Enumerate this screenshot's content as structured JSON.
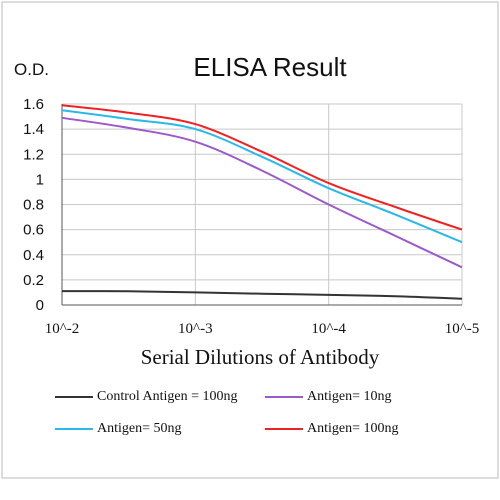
{
  "chart_data": {
    "type": "line",
    "title": "ELISA Result",
    "ylabel": "O.D.",
    "xlabel": "Serial Dilutions  of Antibody",
    "x_ticks": [
      "10^-2",
      "10^-3",
      "10^-4",
      "10^-5"
    ],
    "y_ticks": [
      "0",
      "0.2",
      "0.4",
      "0.6",
      "0.8",
      "1",
      "1.2",
      "1.4",
      "1.6"
    ],
    "ylim": [
      0,
      1.6
    ],
    "x_scale": "log",
    "x": [
      0.01,
      0.00316,
      0.001,
      0.000316,
      0.0001,
      3.16e-05,
      1e-05
    ],
    "grid": true,
    "legend_position": "bottom",
    "series": [
      {
        "name": "Control Antigen = 100ng",
        "color": "#333333",
        "values": [
          0.11,
          0.11,
          0.1,
          0.09,
          0.08,
          0.07,
          0.05
        ]
      },
      {
        "name": "Antigen= 10ng",
        "color": "#9b59c9",
        "values": [
          1.49,
          1.41,
          1.3,
          1.07,
          0.8,
          0.55,
          0.3
        ]
      },
      {
        "name": "Antigen= 50ng",
        "color": "#2ab8e8",
        "values": [
          1.55,
          1.48,
          1.4,
          1.18,
          0.93,
          0.72,
          0.5
        ]
      },
      {
        "name": "Antigen= 100ng",
        "color": "#ee2222",
        "values": [
          1.59,
          1.53,
          1.44,
          1.22,
          0.97,
          0.78,
          0.6
        ]
      }
    ]
  }
}
